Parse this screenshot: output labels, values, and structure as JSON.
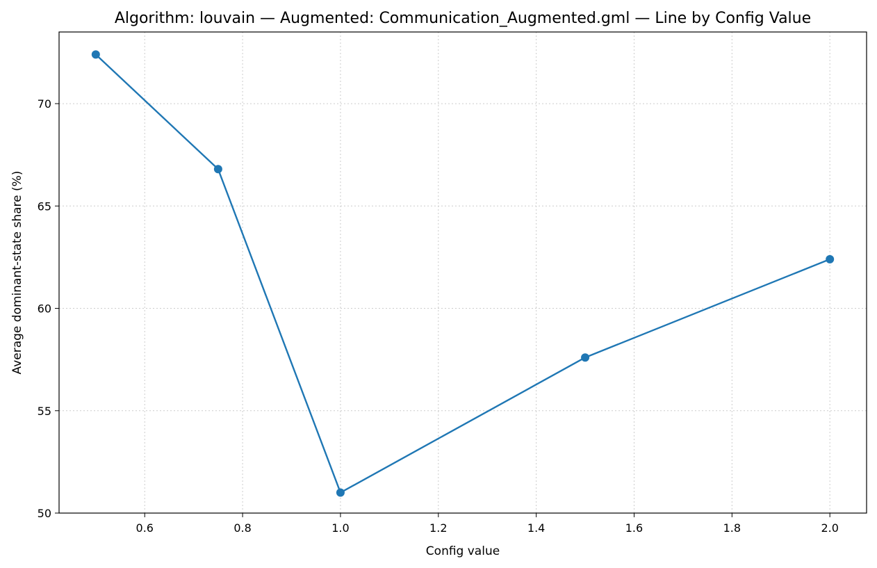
{
  "chart_data": {
    "type": "line",
    "title": "Algorithm: louvain — Augmented: Communication_Augmented.gml — Line by Config Value",
    "xlabel": "Config value",
    "ylabel": "Average dominant-state share (%)",
    "xlim": [
      0.425,
      2.075
    ],
    "ylim": [
      50,
      73.5
    ],
    "xticks": [
      0.6,
      0.8,
      1.0,
      1.2,
      1.4,
      1.6,
      1.8,
      2.0
    ],
    "xtick_labels": [
      "0.6",
      "0.8",
      "1.0",
      "1.2",
      "1.4",
      "1.6",
      "1.8",
      "2.0"
    ],
    "yticks": [
      50,
      55,
      60,
      65,
      70
    ],
    "ytick_labels": [
      "50",
      "55",
      "60",
      "65",
      "70"
    ],
    "grid": true,
    "series": [
      {
        "color": "#1f77b4",
        "x": [
          0.5,
          0.75,
          1.0,
          1.5,
          2.0
        ],
        "y": [
          72.4,
          66.8,
          51.0,
          57.6,
          62.4
        ]
      }
    ]
  }
}
